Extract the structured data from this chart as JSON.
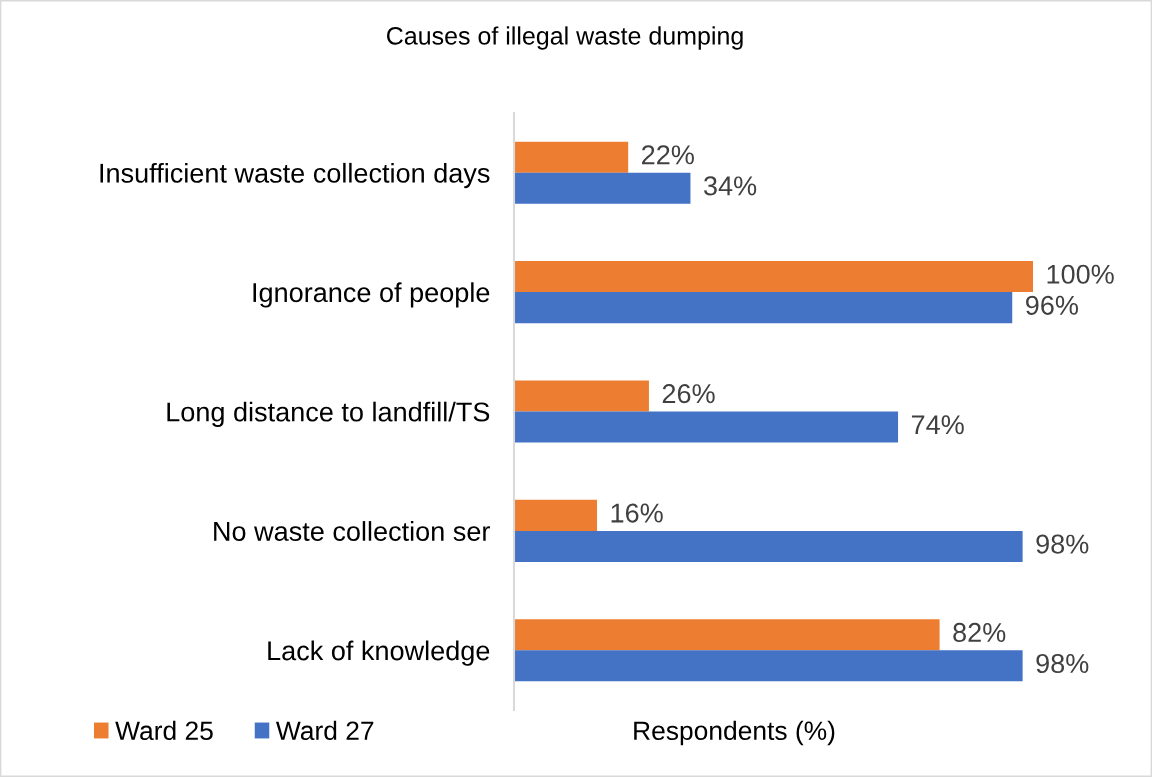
{
  "chart_data": {
    "type": "bar",
    "orientation": "horizontal",
    "title": "Causes of illegal waste dumping",
    "xlabel": "Respondents (%)",
    "categories": [
      "Insufficient waste collection days",
      "Ignorance of people",
      "Long distance to landfill/TS",
      "No waste collection ser",
      "Lack of knowledge"
    ],
    "series": [
      {
        "name": "Ward 25",
        "color": "#ed7d31",
        "values": [
          22,
          100,
          26,
          16,
          82
        ],
        "value_labels": [
          "22%",
          "100%",
          "26%",
          "16%",
          "82%"
        ]
      },
      {
        "name": "Ward 27",
        "color": "#4472c4",
        "values": [
          34,
          96,
          74,
          98,
          98
        ],
        "value_labels": [
          "34%",
          "96%",
          "74%",
          "98%",
          "98%"
        ]
      }
    ],
    "xlim": [
      0,
      100
    ],
    "tick_labels": "y",
    "grid": false,
    "legend": "bottom left"
  }
}
